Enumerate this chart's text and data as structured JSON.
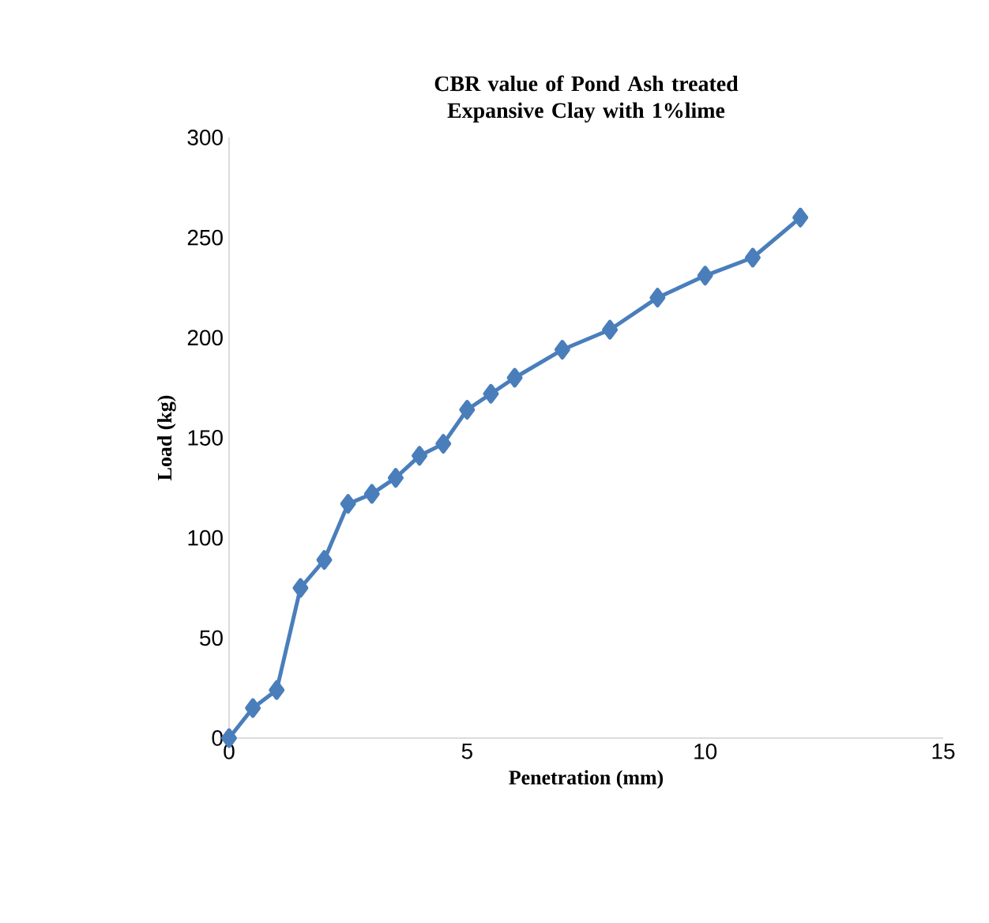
{
  "chart_data": {
    "type": "line",
    "title": "CBR value of Pond Ash treated Expansive Clay with 1%lime",
    "xlabel": "Penetration (mm)",
    "ylabel": "Load (kg)",
    "x": [
      0,
      0.5,
      1,
      1.5,
      2,
      2.5,
      3,
      3.5,
      4,
      4.5,
      5,
      5.5,
      6,
      7,
      8,
      9,
      10,
      11,
      12
    ],
    "series": [
      {
        "color": "#4a7ebb",
        "values": [
          0,
          15,
          24,
          75,
          89,
          117,
          122,
          130,
          141,
          147,
          164,
          172,
          180,
          194,
          204,
          220,
          231,
          240,
          260
        ]
      }
    ],
    "xlim": [
      0,
      15
    ],
    "xticks": [
      0,
      5,
      10,
      15
    ],
    "ylim": [
      0,
      300
    ],
    "yticks": [
      0,
      50,
      100,
      150,
      200,
      250,
      300
    ],
    "marker": "diamond",
    "line_style": "solid",
    "grid": false
  }
}
